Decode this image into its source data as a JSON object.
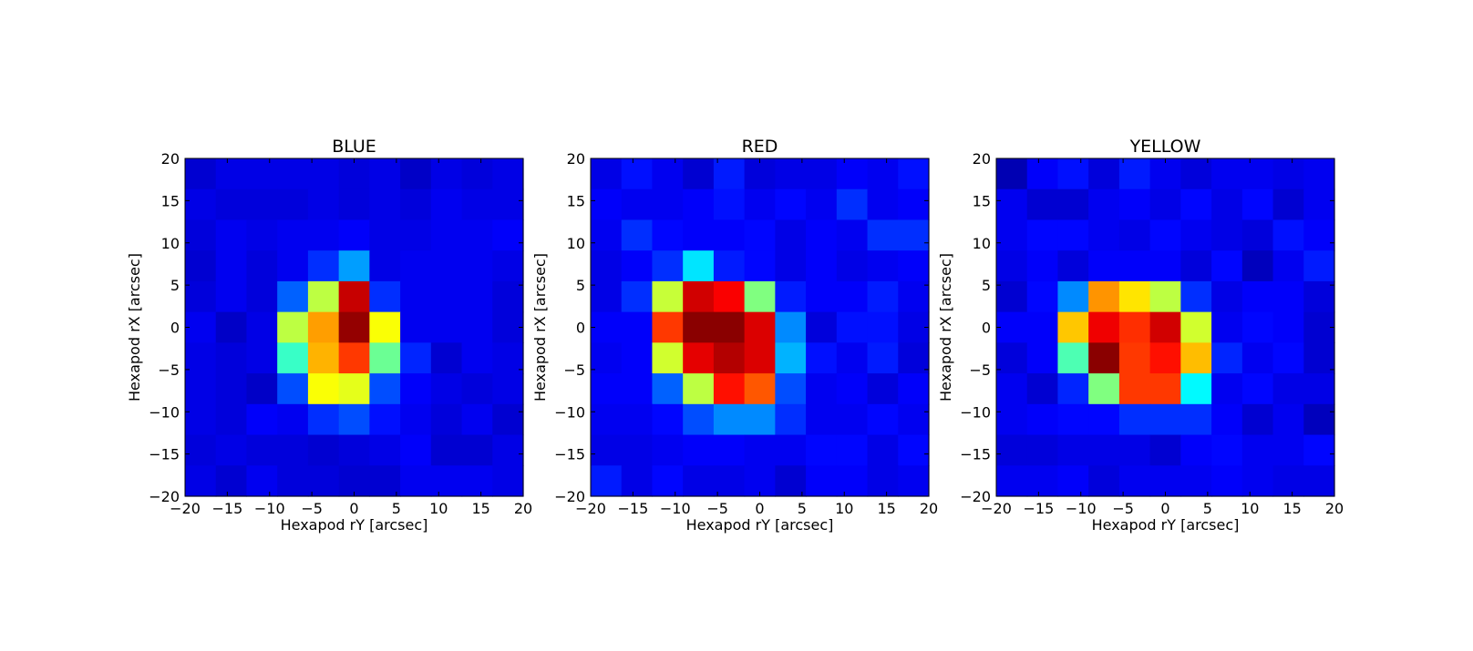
{
  "chart_data": [
    {
      "type": "heatmap",
      "title": "BLUE",
      "xlabel": "Hexapod rY [arcsec]",
      "ylabel": "Hexapod rX [arcsec]",
      "xlim": [
        -20,
        20
      ],
      "ylim": [
        -20,
        20
      ],
      "xticks": [
        -20,
        -15,
        -10,
        -5,
        0,
        5,
        10,
        15,
        20
      ],
      "yticks": [
        -20,
        -15,
        -10,
        -5,
        0,
        5,
        10,
        15,
        20
      ],
      "colormap": "jet",
      "grid": false,
      "rows_top_to_bottom": [
        [
          0.08,
          0.1,
          0.1,
          0.1,
          0.1,
          0.09,
          0.1,
          0.07,
          0.1,
          0.09,
          0.1
        ],
        [
          0.1,
          0.09,
          0.09,
          0.09,
          0.1,
          0.09,
          0.1,
          0.09,
          0.11,
          0.1,
          0.1
        ],
        [
          0.09,
          0.11,
          0.1,
          0.11,
          0.11,
          0.12,
          0.1,
          0.1,
          0.11,
          0.11,
          0.12
        ],
        [
          0.08,
          0.11,
          0.09,
          0.11,
          0.17,
          0.28,
          0.1,
          0.11,
          0.11,
          0.11,
          0.1
        ],
        [
          0.09,
          0.11,
          0.09,
          0.22,
          0.56,
          0.93,
          0.17,
          0.11,
          0.11,
          0.11,
          0.09
        ],
        [
          0.11,
          0.07,
          0.1,
          0.56,
          0.72,
          0.98,
          0.62,
          0.11,
          0.11,
          0.11,
          0.09
        ],
        [
          0.1,
          0.09,
          0.1,
          0.43,
          0.7,
          0.82,
          0.48,
          0.16,
          0.08,
          0.11,
          0.1
        ],
        [
          0.1,
          0.09,
          0.07,
          0.2,
          0.62,
          0.6,
          0.2,
          0.12,
          0.1,
          0.09,
          0.1
        ],
        [
          0.1,
          0.09,
          0.12,
          0.11,
          0.17,
          0.2,
          0.14,
          0.11,
          0.09,
          0.11,
          0.08
        ],
        [
          0.09,
          0.1,
          0.09,
          0.09,
          0.08,
          0.09,
          0.1,
          0.12,
          0.08,
          0.08,
          0.1
        ],
        [
          0.1,
          0.08,
          0.11,
          0.09,
          0.09,
          0.08,
          0.08,
          0.11,
          0.11,
          0.11,
          0.1
        ]
      ]
    },
    {
      "type": "heatmap",
      "title": "RED",
      "xlabel": "Hexapod rY [arcsec]",
      "ylabel": "Hexapod rX [arcsec]",
      "xlim": [
        -20,
        20
      ],
      "ylim": [
        -20,
        20
      ],
      "xticks": [
        -20,
        -15,
        -10,
        -5,
        0,
        5,
        10,
        15,
        20
      ],
      "yticks": [
        -20,
        -15,
        -10,
        -5,
        0,
        5,
        10,
        15,
        20
      ],
      "colormap": "jet",
      "grid": false,
      "rows_top_to_bottom": [
        [
          0.1,
          0.14,
          0.11,
          0.08,
          0.15,
          0.09,
          0.1,
          0.1,
          0.12,
          0.11,
          0.14
        ],
        [
          0.12,
          0.11,
          0.11,
          0.12,
          0.14,
          0.11,
          0.13,
          0.11,
          0.17,
          0.11,
          0.12
        ],
        [
          0.11,
          0.17,
          0.13,
          0.12,
          0.12,
          0.13,
          0.1,
          0.12,
          0.11,
          0.17,
          0.17
        ],
        [
          0.1,
          0.12,
          0.17,
          0.35,
          0.15,
          0.13,
          0.1,
          0.12,
          0.1,
          0.11,
          0.12
        ],
        [
          0.1,
          0.17,
          0.57,
          0.92,
          0.88,
          0.5,
          0.15,
          0.12,
          0.12,
          0.15,
          0.11
        ],
        [
          0.12,
          0.12,
          0.82,
          0.99,
          0.99,
          0.91,
          0.26,
          0.09,
          0.14,
          0.14,
          0.1
        ],
        [
          0.11,
          0.12,
          0.58,
          0.9,
          0.95,
          0.91,
          0.3,
          0.14,
          0.11,
          0.15,
          0.09
        ],
        [
          0.12,
          0.12,
          0.22,
          0.56,
          0.86,
          0.79,
          0.2,
          0.11,
          0.12,
          0.09,
          0.12
        ],
        [
          0.11,
          0.11,
          0.13,
          0.2,
          0.26,
          0.26,
          0.17,
          0.11,
          0.11,
          0.13,
          0.11
        ],
        [
          0.1,
          0.1,
          0.11,
          0.12,
          0.12,
          0.11,
          0.11,
          0.13,
          0.13,
          0.1,
          0.13
        ],
        [
          0.15,
          0.1,
          0.13,
          0.1,
          0.1,
          0.11,
          0.08,
          0.12,
          0.12,
          0.1,
          0.11
        ]
      ]
    },
    {
      "type": "heatmap",
      "title": "YELLOW",
      "xlabel": "Hexapod rY [arcsec]",
      "ylabel": "Hexapod rX [arcsec]",
      "xlim": [
        -20,
        20
      ],
      "ylim": [
        -20,
        20
      ],
      "xticks": [
        -20,
        -15,
        -10,
        -5,
        0,
        5,
        10,
        15,
        20
      ],
      "yticks": [
        -20,
        -15,
        -10,
        -5,
        0,
        5,
        10,
        15,
        20
      ],
      "colormap": "jet",
      "grid": false,
      "rows_top_to_bottom": [
        [
          0.05,
          0.12,
          0.14,
          0.09,
          0.15,
          0.11,
          0.09,
          0.11,
          0.11,
          0.1,
          0.11
        ],
        [
          0.11,
          0.08,
          0.08,
          0.11,
          0.12,
          0.1,
          0.13,
          0.1,
          0.13,
          0.08,
          0.11
        ],
        [
          0.11,
          0.13,
          0.13,
          0.11,
          0.1,
          0.13,
          0.11,
          0.1,
          0.09,
          0.14,
          0.12
        ],
        [
          0.1,
          0.12,
          0.09,
          0.12,
          0.12,
          0.12,
          0.09,
          0.13,
          0.06,
          0.11,
          0.15
        ],
        [
          0.08,
          0.13,
          0.26,
          0.73,
          0.65,
          0.56,
          0.17,
          0.1,
          0.12,
          0.12,
          0.09
        ],
        [
          0.12,
          0.12,
          0.68,
          0.89,
          0.83,
          0.92,
          0.58,
          0.11,
          0.13,
          0.12,
          0.08
        ],
        [
          0.09,
          0.12,
          0.45,
          0.99,
          0.82,
          0.86,
          0.69,
          0.16,
          0.11,
          0.13,
          0.08
        ],
        [
          0.11,
          0.08,
          0.16,
          0.5,
          0.82,
          0.82,
          0.37,
          0.11,
          0.13,
          0.1,
          0.1
        ],
        [
          0.11,
          0.12,
          0.13,
          0.13,
          0.17,
          0.17,
          0.17,
          0.12,
          0.08,
          0.11,
          0.06
        ],
        [
          0.09,
          0.09,
          0.1,
          0.1,
          0.1,
          0.08,
          0.12,
          0.13,
          0.11,
          0.11,
          0.13
        ],
        [
          0.11,
          0.11,
          0.12,
          0.09,
          0.11,
          0.11,
          0.11,
          0.12,
          0.11,
          0.1,
          0.1
        ]
      ]
    }
  ]
}
